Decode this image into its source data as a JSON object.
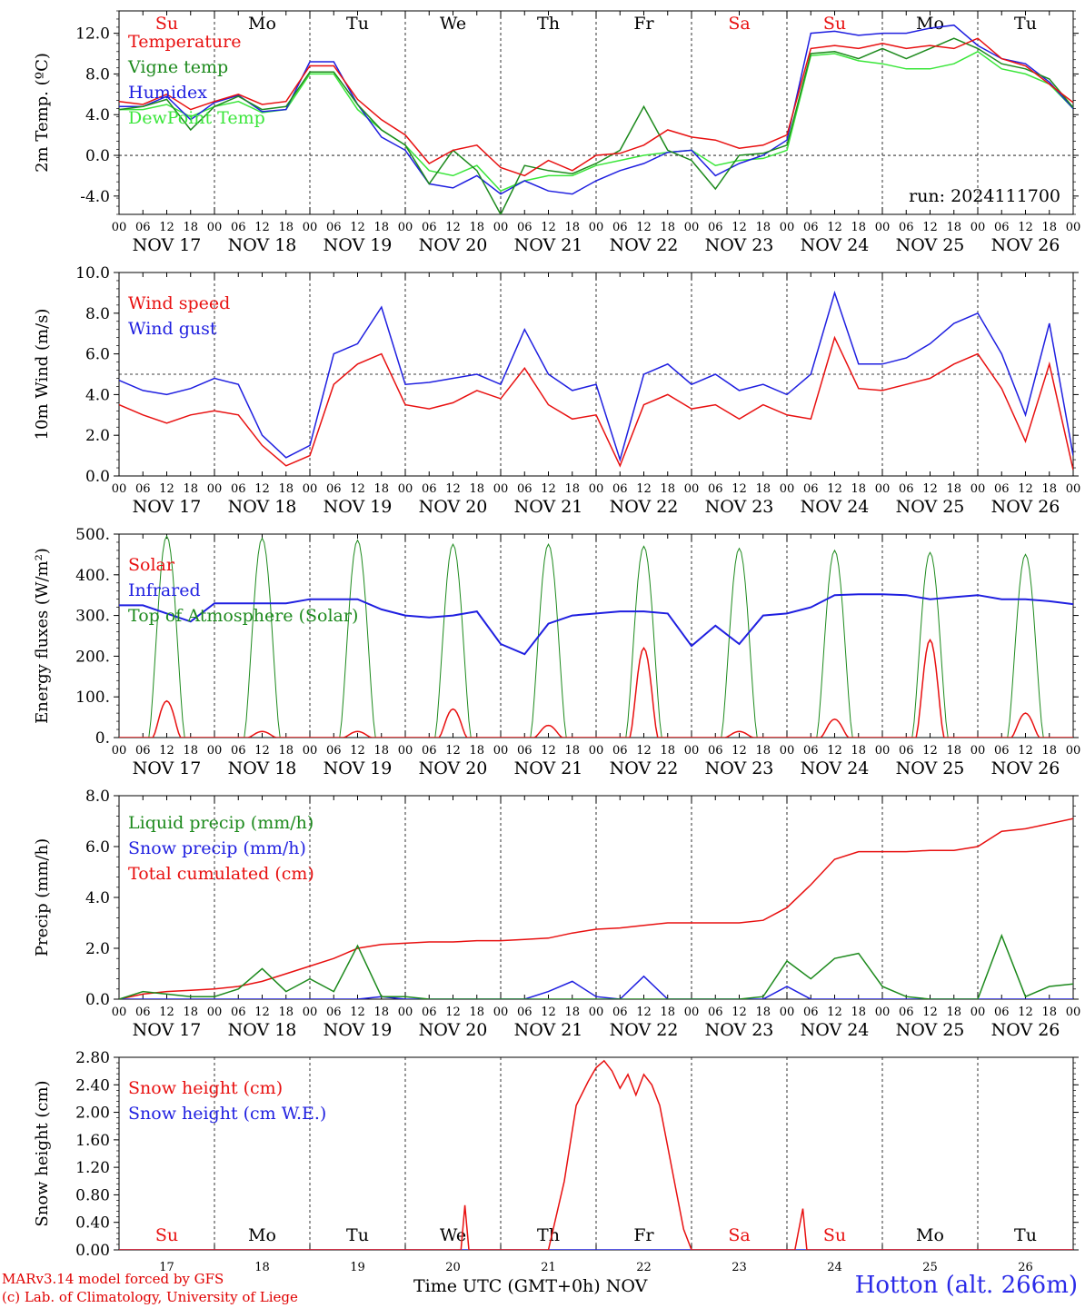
{
  "run_label": "run: 2024111700",
  "footer": {
    "credit_line1": "MARv3.14 model forced by GFS",
    "credit_line2": "(c) Lab. of Climatology, University of Liege",
    "xaxis_label": "Time UTC (GMT+0h) NOV",
    "station": "Hotton (alt. 266m)"
  },
  "colors": {
    "red": "#e81010",
    "green": "#1d8a1d",
    "blue": "#1f1fe0",
    "lightgreen": "#3ae63a"
  },
  "x_axis": {
    "hour_ticks": [
      "00",
      "06",
      "12",
      "18"
    ],
    "end_tick": "00",
    "dates": [
      "NOV 17",
      "NOV 18",
      "NOV 19",
      "NOV 20",
      "NOV 21",
      "NOV 22",
      "NOV 23",
      "NOV 24",
      "NOV 25",
      "NOV 26"
    ],
    "weekdays": [
      "Su",
      "Mo",
      "Tu",
      "We",
      "Th",
      "Fr",
      "Sa",
      "Su",
      "Mo",
      "Tu"
    ],
    "weekday_colors": [
      "red",
      "black",
      "black",
      "black",
      "black",
      "black",
      "red",
      "red",
      "black",
      "black"
    ],
    "day_numbers": [
      "17",
      "18",
      "19",
      "20",
      "21",
      "22",
      "23",
      "24",
      "25",
      "26"
    ]
  },
  "chart_data": [
    {
      "type": "line",
      "ylabel": "2m Temp. (ºC)",
      "ylim": [
        -5.8,
        14.2
      ],
      "yticks": [
        "-4.0",
        "0.0",
        "4.0",
        "8.0",
        "12.0"
      ],
      "ytick_values": [
        -4,
        0,
        4,
        8,
        12
      ],
      "ref_lines": [
        0
      ],
      "legend": [
        {
          "name": "Temperature",
          "color": "red"
        },
        {
          "name": "Vigne temp",
          "color": "green"
        },
        {
          "name": "Humidex",
          "color": "blue"
        },
        {
          "name": "DewPoint Temp",
          "color": "lightgreen"
        }
      ],
      "x_hours": [
        0,
        6,
        12,
        18,
        24,
        30,
        36,
        42,
        48,
        54,
        60,
        66,
        72,
        78,
        84,
        90,
        96,
        102,
        108,
        114,
        120,
        126,
        132,
        138,
        144,
        150,
        156,
        162,
        168,
        174,
        180,
        186,
        192,
        198,
        204,
        210,
        216,
        222,
        228,
        234,
        240
      ],
      "series": [
        {
          "name": "Temperature",
          "color": "red",
          "values": [
            5.3,
            5.0,
            6.0,
            4.5,
            5.3,
            6.0,
            5.0,
            5.3,
            8.8,
            8.8,
            5.5,
            3.5,
            2.0,
            -0.8,
            0.5,
            1.0,
            -1.2,
            -2.0,
            -0.5,
            -1.5,
            0.0,
            0.2,
            1.0,
            2.5,
            1.8,
            1.5,
            0.7,
            1.0,
            2.0,
            10.5,
            10.8,
            10.5,
            11.0,
            10.5,
            10.8,
            10.5,
            11.5,
            9.5,
            8.8,
            7.0,
            5.2
          ]
        },
        {
          "name": "Vigne temp",
          "color": "green",
          "values": [
            4.5,
            4.8,
            5.5,
            2.5,
            4.8,
            5.8,
            4.5,
            4.8,
            8.2,
            8.2,
            5.0,
            2.5,
            1.0,
            -2.8,
            0.5,
            -1.5,
            -5.8,
            -1.0,
            -1.5,
            -1.8,
            -0.8,
            0.5,
            4.8,
            0.5,
            -0.5,
            -3.3,
            0.0,
            0.2,
            1.0,
            10.0,
            10.2,
            9.5,
            10.5,
            9.5,
            10.5,
            11.5,
            10.5,
            9.0,
            8.5,
            7.5,
            4.7
          ]
        },
        {
          "name": "Humidex",
          "color": "blue",
          "values": [
            4.8,
            4.8,
            5.8,
            3.5,
            5.2,
            5.9,
            4.3,
            4.5,
            9.2,
            9.2,
            5.0,
            1.8,
            0.5,
            -2.8,
            -3.2,
            -2.0,
            -3.8,
            -2.5,
            -3.5,
            -3.8,
            -2.5,
            -1.5,
            -0.8,
            0.3,
            0.5,
            -2.0,
            -0.8,
            0.0,
            1.5,
            12.0,
            12.2,
            11.8,
            12.0,
            12.0,
            12.5,
            12.8,
            10.8,
            9.5,
            9.0,
            7.2,
            4.6
          ]
        },
        {
          "name": "DewPoint Temp",
          "color": "lightgreen",
          "values": [
            4.5,
            4.5,
            5.0,
            3.8,
            4.8,
            5.3,
            4.2,
            4.5,
            8.0,
            8.0,
            4.5,
            2.5,
            1.0,
            -1.5,
            -2.0,
            -1.0,
            -3.5,
            -2.5,
            -2.0,
            -2.0,
            -1.0,
            -0.5,
            0.0,
            0.3,
            0.5,
            -1.0,
            -0.5,
            -0.3,
            0.5,
            9.8,
            10.0,
            9.3,
            9.0,
            8.5,
            8.5,
            9.0,
            10.2,
            8.5,
            8.0,
            7.0,
            4.6
          ]
        }
      ]
    },
    {
      "type": "line",
      "ylabel": "10m Wind (m/s)",
      "ylim": [
        0,
        10
      ],
      "yticks": [
        "0.0",
        "2.0",
        "4.0",
        "6.0",
        "8.0",
        "10.0"
      ],
      "ytick_values": [
        0,
        2,
        4,
        6,
        8,
        10
      ],
      "ref_lines": [
        5
      ],
      "legend": [
        {
          "name": "Wind speed",
          "color": "red"
        },
        {
          "name": "Wind gust",
          "color": "blue"
        }
      ],
      "x_hours": [
        0,
        6,
        12,
        18,
        24,
        30,
        36,
        42,
        48,
        54,
        60,
        66,
        72,
        78,
        84,
        90,
        96,
        102,
        108,
        114,
        120,
        126,
        132,
        138,
        144,
        150,
        156,
        162,
        168,
        174,
        180,
        186,
        192,
        198,
        204,
        210,
        216,
        222,
        228,
        234,
        240
      ],
      "series": [
        {
          "name": "Wind speed",
          "color": "red",
          "values": [
            3.5,
            3.0,
            2.6,
            3.0,
            3.2,
            3.0,
            1.5,
            0.5,
            1.0,
            4.5,
            5.5,
            6.0,
            3.5,
            3.3,
            3.6,
            4.2,
            3.8,
            5.3,
            3.5,
            2.8,
            3.0,
            0.5,
            3.5,
            4.0,
            3.3,
            3.5,
            2.8,
            3.5,
            3.0,
            2.8,
            6.8,
            4.3,
            4.2,
            4.5,
            4.8,
            5.5,
            6.0,
            4.3,
            1.7,
            5.5,
            0.3
          ]
        },
        {
          "name": "Wind gust",
          "color": "blue",
          "values": [
            4.7,
            4.2,
            4.0,
            4.3,
            4.8,
            4.5,
            2.0,
            0.9,
            1.5,
            6.0,
            6.5,
            8.3,
            4.5,
            4.6,
            4.8,
            5.0,
            4.5,
            7.2,
            5.0,
            4.2,
            4.5,
            0.8,
            5.0,
            5.5,
            4.5,
            5.0,
            4.2,
            4.5,
            4.0,
            5.0,
            9.0,
            5.5,
            5.5,
            5.8,
            6.5,
            7.5,
            8.0,
            6.0,
            3.0,
            7.5,
            1.0
          ]
        }
      ]
    },
    {
      "type": "line",
      "ylabel": "Energy fluxes (W/m²)",
      "ylim": [
        0,
        500
      ],
      "yticks": [
        "0.",
        "100.",
        "200.",
        "300.",
        "400.",
        "500."
      ],
      "ytick_values": [
        0,
        100,
        200,
        300,
        400,
        500
      ],
      "legend": [
        {
          "name": "Solar",
          "color": "red"
        },
        {
          "name": "Infrared",
          "color": "blue"
        },
        {
          "name": "Top of Atmosphere (Solar)",
          "color": "green"
        }
      ],
      "toa_peaks": [
        495,
        490,
        485,
        475,
        475,
        470,
        465,
        460,
        455,
        450
      ],
      "solar_peaks": [
        90,
        15,
        15,
        70,
        30,
        220,
        15,
        45,
        240,
        60
      ],
      "infrared": {
        "x_hours": [
          0,
          6,
          12,
          18,
          24,
          30,
          36,
          42,
          48,
          54,
          60,
          66,
          72,
          78,
          84,
          90,
          96,
          102,
          108,
          114,
          120,
          126,
          132,
          138,
          144,
          150,
          156,
          162,
          168,
          174,
          180,
          186,
          192,
          198,
          204,
          210,
          216,
          222,
          228,
          234,
          240
        ],
        "values": [
          325,
          325,
          305,
          285,
          330,
          330,
          330,
          330,
          340,
          340,
          340,
          315,
          300,
          295,
          300,
          310,
          230,
          205,
          280,
          300,
          305,
          310,
          310,
          305,
          225,
          275,
          230,
          300,
          305,
          320,
          350,
          352,
          352,
          350,
          340,
          345,
          350,
          340,
          340,
          335,
          328
        ]
      }
    },
    {
      "type": "line",
      "ylabel": "Precip (mm/h)",
      "ylim": [
        0,
        8
      ],
      "yticks": [
        "0.0",
        "2.0",
        "4.0",
        "6.0",
        "8.0"
      ],
      "ytick_values": [
        0,
        2,
        4,
        6,
        8
      ],
      "legend": [
        {
          "name": "Liquid precip (mm/h)",
          "color": "green"
        },
        {
          "name": "Snow precip (mm/h)",
          "color": "blue"
        },
        {
          "name": "Total cumulated (cm)",
          "color": "red"
        }
      ],
      "x_hours": [
        0,
        6,
        12,
        18,
        24,
        30,
        36,
        42,
        48,
        54,
        60,
        66,
        72,
        78,
        84,
        90,
        96,
        102,
        108,
        114,
        120,
        126,
        132,
        138,
        144,
        150,
        156,
        162,
        168,
        174,
        180,
        186,
        192,
        198,
        204,
        210,
        216,
        222,
        228,
        234,
        240
      ],
      "series": [
        {
          "name": "Liquid precip (mm/h)",
          "color": "green",
          "values": [
            0.0,
            0.3,
            0.2,
            0.1,
            0.1,
            0.4,
            1.2,
            0.3,
            0.8,
            0.3,
            2.1,
            0.1,
            0.1,
            0.0,
            0.0,
            0.0,
            0.0,
            0.0,
            0.0,
            0.0,
            0.0,
            0.0,
            0.0,
            0.0,
            0.0,
            0.0,
            0.0,
            0.1,
            1.5,
            0.8,
            1.6,
            1.8,
            0.5,
            0.1,
            0.0,
            0.0,
            0.0,
            2.5,
            0.1,
            0.5,
            0.6
          ]
        },
        {
          "name": "Snow precip (mm/h)",
          "color": "blue",
          "values": [
            0.0,
            0.0,
            0.0,
            0.0,
            0.0,
            0.0,
            0.0,
            0.0,
            0.0,
            0.0,
            0.0,
            0.1,
            0.0,
            0.0,
            0.0,
            0.0,
            0.0,
            0.0,
            0.3,
            0.7,
            0.1,
            0.0,
            0.9,
            0.0,
            0.0,
            0.0,
            0.0,
            0.0,
            0.5,
            0.0,
            0.0,
            0.0,
            0.0,
            0.0,
            0.0,
            0.0,
            0.0,
            0.0,
            0.0,
            0.0,
            0.0
          ]
        },
        {
          "name": "Total cumulated (cm)",
          "color": "red",
          "values": [
            0.0,
            0.2,
            0.3,
            0.35,
            0.4,
            0.5,
            0.7,
            1.0,
            1.3,
            1.6,
            2.0,
            2.15,
            2.2,
            2.25,
            2.25,
            2.3,
            2.3,
            2.35,
            2.4,
            2.6,
            2.75,
            2.8,
            2.9,
            3.0,
            3.0,
            3.0,
            3.0,
            3.1,
            3.6,
            4.5,
            5.5,
            5.8,
            5.8,
            5.8,
            5.85,
            5.85,
            6.0,
            6.6,
            6.7,
            6.9,
            7.1
          ]
        }
      ]
    },
    {
      "type": "line",
      "ylabel": "Snow height (cm)",
      "ylim": [
        0,
        2.8
      ],
      "yticks": [
        "0.00",
        "0.40",
        "0.80",
        "1.20",
        "1.60",
        "2.00",
        "2.40",
        "2.80"
      ],
      "ytick_values": [
        0,
        0.4,
        0.8,
        1.2,
        1.6,
        2.0,
        2.4,
        2.8
      ],
      "legend": [
        {
          "name": "Snow height (cm)",
          "color": "red"
        },
        {
          "name": "Snow height (cm W.E.)",
          "color": "blue"
        }
      ],
      "series": [
        {
          "name": "Snow height (cm)",
          "color": "red",
          "x_hours": [
            0,
            84,
            86,
            87,
            88,
            108,
            112,
            115,
            118,
            120,
            122,
            124,
            126,
            128,
            130,
            132,
            134,
            136,
            138,
            140,
            142,
            144,
            146,
            170,
            172,
            172.5,
            173,
            240
          ],
          "values": [
            0,
            0,
            0,
            0.65,
            0,
            0,
            1.0,
            2.1,
            2.45,
            2.65,
            2.75,
            2.6,
            2.35,
            2.55,
            2.25,
            2.55,
            2.4,
            2.1,
            1.5,
            0.9,
            0.3,
            0,
            0,
            0,
            0.6,
            0.3,
            0,
            0
          ]
        },
        {
          "name": "Snow height (cm W.E.)",
          "color": "blue",
          "x_hours": [
            0,
            240
          ],
          "values": [
            0,
            0
          ]
        }
      ]
    }
  ]
}
